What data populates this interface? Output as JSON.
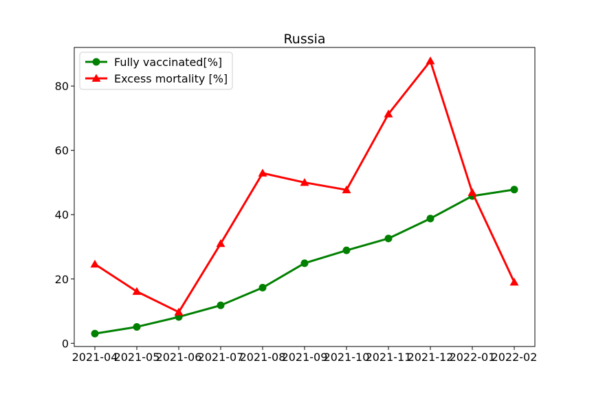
{
  "chart_data": {
    "type": "line",
    "title": "Russia",
    "xlabel": "",
    "ylabel": "",
    "categories": [
      "2021-04",
      "2021-05",
      "2021-06",
      "2021-07",
      "2021-08",
      "2021-09",
      "2021-10",
      "2021-11",
      "2021-12",
      "2022-01",
      "2022-02"
    ],
    "ylim": [
      -1,
      92
    ],
    "yticks": [
      0,
      20,
      40,
      60,
      80
    ],
    "grid": false,
    "legend_position": "top-left",
    "series": [
      {
        "name": "Fully vaccinated[%]",
        "color": "#008000",
        "marker": "circle",
        "values": [
          3.0,
          5.1,
          8.2,
          11.8,
          17.3,
          24.9,
          28.9,
          32.6,
          38.8,
          45.8,
          47.8
        ]
      },
      {
        "name": "Excess mortality [%]",
        "color": "#ff0000",
        "marker": "triangle",
        "values": [
          24.6,
          16.1,
          9.7,
          31.0,
          52.9,
          50.0,
          47.7,
          71.3,
          87.8,
          46.9,
          19.0
        ]
      }
    ]
  }
}
